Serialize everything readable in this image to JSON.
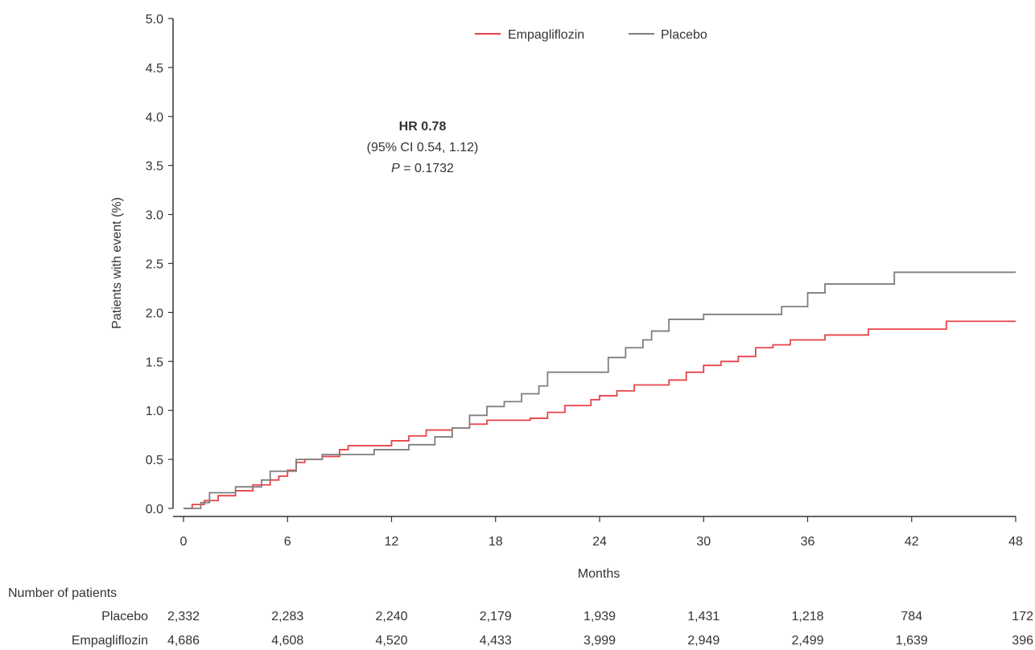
{
  "chart_data": {
    "type": "line",
    "subtype": "kaplan-meier-cumulative-incidence",
    "ylabel": "Patients with event (%)",
    "xlabel": "Months",
    "ylim": [
      0,
      5
    ],
    "xlim": [
      0,
      48
    ],
    "yticks": [
      "0.0",
      "0.5",
      "1.0",
      "1.5",
      "2.0",
      "2.5",
      "3.0",
      "3.5",
      "4.0",
      "4.5",
      "5.0"
    ],
    "xticks": [
      "0",
      "6",
      "12",
      "18",
      "24",
      "30",
      "36",
      "42",
      "48"
    ],
    "grid": false,
    "legend_position": "top-center",
    "series": [
      {
        "name": "Empagliflozin",
        "color": "#e8434a",
        "points": [
          [
            0,
            0
          ],
          [
            0.5,
            0.04
          ],
          [
            1.2,
            0.08
          ],
          [
            2,
            0.13
          ],
          [
            3,
            0.18
          ],
          [
            4,
            0.24
          ],
          [
            5,
            0.29
          ],
          [
            5.5,
            0.33
          ],
          [
            6,
            0.39
          ],
          [
            6.5,
            0.47
          ],
          [
            7,
            0.5
          ],
          [
            8,
            0.53
          ],
          [
            9,
            0.6
          ],
          [
            9.5,
            0.64
          ],
          [
            12,
            0.69
          ],
          [
            13,
            0.74
          ],
          [
            14,
            0.8
          ],
          [
            15.5,
            0.82
          ],
          [
            16.5,
            0.86
          ],
          [
            17.5,
            0.9
          ],
          [
            20,
            0.92
          ],
          [
            21,
            0.98
          ],
          [
            22,
            1.05
          ],
          [
            23.5,
            1.11
          ],
          [
            24,
            1.15
          ],
          [
            25,
            1.2
          ],
          [
            26,
            1.26
          ],
          [
            28,
            1.31
          ],
          [
            29,
            1.39
          ],
          [
            30,
            1.46
          ],
          [
            31,
            1.5
          ],
          [
            32,
            1.55
          ],
          [
            33,
            1.64
          ],
          [
            34,
            1.67
          ],
          [
            35,
            1.72
          ],
          [
            37,
            1.77
          ],
          [
            39.5,
            1.83
          ],
          [
            44,
            1.91
          ],
          [
            48,
            1.91
          ]
        ]
      },
      {
        "name": "Placebo",
        "color": "#7f7f7f",
        "points": [
          [
            0,
            0
          ],
          [
            1,
            0.06
          ],
          [
            1.5,
            0.16
          ],
          [
            3,
            0.22
          ],
          [
            4.5,
            0.29
          ],
          [
            5,
            0.38
          ],
          [
            6.5,
            0.5
          ],
          [
            8,
            0.55
          ],
          [
            11,
            0.6
          ],
          [
            13,
            0.65
          ],
          [
            14.5,
            0.73
          ],
          [
            15.5,
            0.82
          ],
          [
            16.5,
            0.95
          ],
          [
            17.5,
            1.04
          ],
          [
            18.5,
            1.09
          ],
          [
            19.5,
            1.17
          ],
          [
            20.5,
            1.25
          ],
          [
            21,
            1.39
          ],
          [
            24.5,
            1.54
          ],
          [
            25.5,
            1.64
          ],
          [
            26.5,
            1.72
          ],
          [
            27,
            1.81
          ],
          [
            28,
            1.93
          ],
          [
            30,
            1.98
          ],
          [
            34.5,
            2.06
          ],
          [
            36,
            2.2
          ],
          [
            37,
            2.29
          ],
          [
            41,
            2.41
          ],
          [
            48,
            2.41
          ]
        ]
      }
    ],
    "annotation": {
      "line1": "HR 0.78",
      "line2": "(95% CI 0.54, 1.12)",
      "line3_italic": "P",
      "line3_rest": " = 0.1732"
    },
    "risk_table": {
      "title": "Number of patients",
      "rows": [
        {
          "label": "Placebo",
          "values": [
            "2,332",
            "2,283",
            "2,240",
            "2,179",
            "1,939",
            "1,431",
            "1,218",
            "784",
            "172"
          ]
        },
        {
          "label": "Empagliflozin",
          "values": [
            "4,686",
            "4,608",
            "4,520",
            "4,433",
            "3,999",
            "2,949",
            "2,499",
            "1,639",
            "396"
          ]
        }
      ]
    }
  }
}
